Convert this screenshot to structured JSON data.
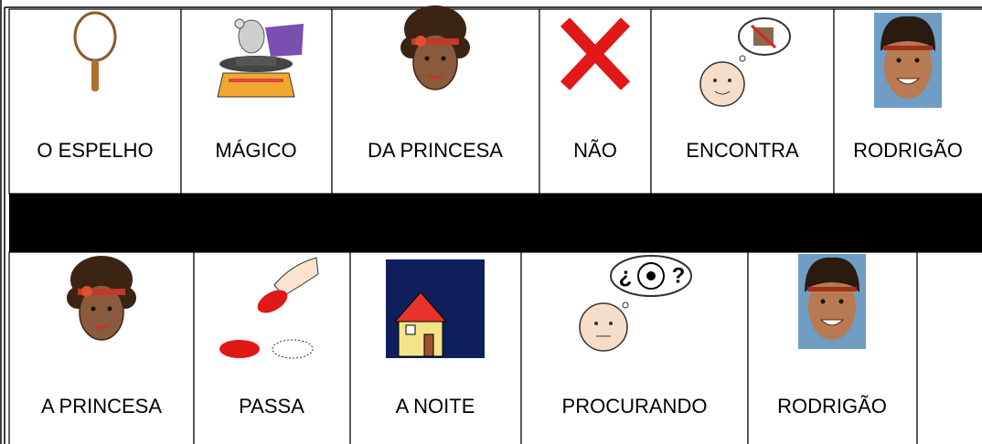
{
  "table": {
    "rows": [
      [
        "O ESPELHO",
        "MÁGICO",
        "DA PRINCESA",
        "NÃO",
        "ENCONTRA",
        "RODRIGÃO"
      ],
      [
        "A PRINCESA",
        "PASSA",
        "A NOITE",
        "PROCURANDO",
        "RODRIGÃO"
      ]
    ]
  }
}
